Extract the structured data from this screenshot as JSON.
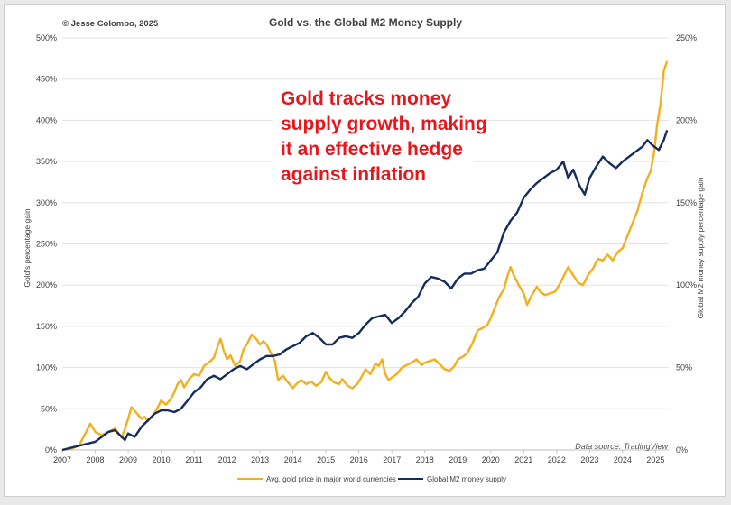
{
  "header": {
    "copyright": "© Jesse Colombo, 2025",
    "title": "Gold vs. the Global M2 Money Supply"
  },
  "annotation": [
    "Gold tracks money",
    "supply growth, making",
    "it an effective hedge",
    "against inflation"
  ],
  "source": "Data source: TradingView",
  "chart_data": {
    "type": "line",
    "title": "Gold vs. the Global M2 Money Supply",
    "ylabel_left": "Gold's percentage gain",
    "ylabel_right": "Global M2 money supply percentage gain",
    "y_left_ticks": [
      "0%",
      "50%",
      "100%",
      "150%",
      "200%",
      "250%",
      "300%",
      "350%",
      "400%",
      "450%",
      "500%"
    ],
    "y_right_ticks": [
      "0%",
      "50%",
      "100%",
      "150%",
      "200%",
      "250%"
    ],
    "ylim_left": [
      0,
      500
    ],
    "ylim_right": [
      0,
      250
    ],
    "xlim": [
      2007,
      2025.4
    ],
    "x_ticks": [
      "2007",
      "2008",
      "2009",
      "2010",
      "2011",
      "2012",
      "2013",
      "2014",
      "2015",
      "2016",
      "2017",
      "2018",
      "2019",
      "2020",
      "2021",
      "2022",
      "2023",
      "2024",
      "2025"
    ],
    "grid": "horizontal",
    "legend_position": "bottom",
    "series": [
      {
        "name": "Avg. gold price in major world currencies",
        "axis": "left",
        "color": "#f5ae1c",
        "points": [
          [
            2007.0,
            0
          ],
          [
            2007.3,
            2
          ],
          [
            2007.5,
            5
          ],
          [
            2007.7,
            20
          ],
          [
            2007.85,
            32
          ],
          [
            2008.0,
            22
          ],
          [
            2008.2,
            18
          ],
          [
            2008.4,
            22
          ],
          [
            2008.6,
            26
          ],
          [
            2008.8,
            15
          ],
          [
            2008.9,
            25
          ],
          [
            2009.0,
            38
          ],
          [
            2009.1,
            52
          ],
          [
            2009.25,
            45
          ],
          [
            2009.4,
            38
          ],
          [
            2009.5,
            40
          ],
          [
            2009.6,
            35
          ],
          [
            2009.8,
            45
          ],
          [
            2009.9,
            52
          ],
          [
            2010.0,
            60
          ],
          [
            2010.15,
            55
          ],
          [
            2010.3,
            62
          ],
          [
            2010.4,
            70
          ],
          [
            2010.5,
            80
          ],
          [
            2010.6,
            85
          ],
          [
            2010.7,
            76
          ],
          [
            2010.85,
            86
          ],
          [
            2011.0,
            92
          ],
          [
            2011.15,
            90
          ],
          [
            2011.3,
            102
          ],
          [
            2011.5,
            108
          ],
          [
            2011.6,
            112
          ],
          [
            2011.7,
            124
          ],
          [
            2011.8,
            135
          ],
          [
            2011.9,
            120
          ],
          [
            2012.0,
            110
          ],
          [
            2012.1,
            115
          ],
          [
            2012.25,
            102
          ],
          [
            2012.4,
            108
          ],
          [
            2012.5,
            122
          ],
          [
            2012.6,
            128
          ],
          [
            2012.75,
            140
          ],
          [
            2012.9,
            134
          ],
          [
            2013.0,
            128
          ],
          [
            2013.1,
            132
          ],
          [
            2013.2,
            128
          ],
          [
            2013.3,
            120
          ],
          [
            2013.45,
            108
          ],
          [
            2013.55,
            85
          ],
          [
            2013.7,
            90
          ],
          [
            2013.85,
            82
          ],
          [
            2014.0,
            75
          ],
          [
            2014.1,
            80
          ],
          [
            2014.25,
            85
          ],
          [
            2014.4,
            80
          ],
          [
            2014.55,
            83
          ],
          [
            2014.7,
            78
          ],
          [
            2014.85,
            82
          ],
          [
            2015.0,
            95
          ],
          [
            2015.1,
            88
          ],
          [
            2015.25,
            82
          ],
          [
            2015.4,
            80
          ],
          [
            2015.5,
            86
          ],
          [
            2015.65,
            78
          ],
          [
            2015.8,
            75
          ],
          [
            2015.95,
            80
          ],
          [
            2016.1,
            90
          ],
          [
            2016.2,
            98
          ],
          [
            2016.35,
            92
          ],
          [
            2016.5,
            105
          ],
          [
            2016.6,
            102
          ],
          [
            2016.7,
            110
          ],
          [
            2016.8,
            92
          ],
          [
            2016.9,
            85
          ],
          [
            2017.0,
            88
          ],
          [
            2017.15,
            92
          ],
          [
            2017.3,
            100
          ],
          [
            2017.45,
            103
          ],
          [
            2017.6,
            106
          ],
          [
            2017.75,
            110
          ],
          [
            2017.9,
            103
          ],
          [
            2018.0,
            106
          ],
          [
            2018.15,
            108
          ],
          [
            2018.3,
            110
          ],
          [
            2018.45,
            104
          ],
          [
            2018.6,
            98
          ],
          [
            2018.75,
            96
          ],
          [
            2018.9,
            102
          ],
          [
            2019.0,
            110
          ],
          [
            2019.15,
            113
          ],
          [
            2019.3,
            118
          ],
          [
            2019.45,
            130
          ],
          [
            2019.6,
            145
          ],
          [
            2019.75,
            148
          ],
          [
            2019.9,
            152
          ],
          [
            2020.0,
            160
          ],
          [
            2020.1,
            170
          ],
          [
            2020.25,
            185
          ],
          [
            2020.4,
            195
          ],
          [
            2020.5,
            210
          ],
          [
            2020.6,
            222
          ],
          [
            2020.7,
            212
          ],
          [
            2020.85,
            200
          ],
          [
            2021.0,
            190
          ],
          [
            2021.1,
            176
          ],
          [
            2021.25,
            188
          ],
          [
            2021.4,
            198
          ],
          [
            2021.5,
            192
          ],
          [
            2021.65,
            188
          ],
          [
            2021.8,
            190
          ],
          [
            2021.95,
            192
          ],
          [
            2022.1,
            202
          ],
          [
            2022.2,
            210
          ],
          [
            2022.35,
            222
          ],
          [
            2022.5,
            212
          ],
          [
            2022.65,
            203
          ],
          [
            2022.8,
            200
          ],
          [
            2022.95,
            212
          ],
          [
            2023.1,
            220
          ],
          [
            2023.25,
            232
          ],
          [
            2023.4,
            230
          ],
          [
            2023.55,
            237
          ],
          [
            2023.7,
            230
          ],
          [
            2023.85,
            240
          ],
          [
            2024.0,
            245
          ],
          [
            2024.15,
            260
          ],
          [
            2024.3,
            275
          ],
          [
            2024.45,
            290
          ],
          [
            2024.6,
            312
          ],
          [
            2024.75,
            330
          ],
          [
            2024.85,
            338
          ],
          [
            2024.95,
            360
          ],
          [
            2025.05,
            395
          ],
          [
            2025.15,
            420
          ],
          [
            2025.25,
            460
          ],
          [
            2025.35,
            472
          ]
        ]
      },
      {
        "name": "Global M2 money supply",
        "axis": "right",
        "color": "#172b5c",
        "points": [
          [
            2007.0,
            0
          ],
          [
            2007.2,
            1
          ],
          [
            2007.4,
            2
          ],
          [
            2007.6,
            3
          ],
          [
            2007.8,
            4
          ],
          [
            2008.0,
            5
          ],
          [
            2008.2,
            8
          ],
          [
            2008.4,
            11
          ],
          [
            2008.6,
            12
          ],
          [
            2008.75,
            9
          ],
          [
            2008.9,
            6
          ],
          [
            2009.0,
            10
          ],
          [
            2009.2,
            8
          ],
          [
            2009.4,
            14
          ],
          [
            2009.6,
            18
          ],
          [
            2009.8,
            22
          ],
          [
            2010.0,
            24
          ],
          [
            2010.2,
            24
          ],
          [
            2010.4,
            23
          ],
          [
            2010.6,
            25
          ],
          [
            2010.8,
            30
          ],
          [
            2011.0,
            35
          ],
          [
            2011.2,
            38
          ],
          [
            2011.4,
            43
          ],
          [
            2011.6,
            45
          ],
          [
            2011.8,
            43
          ],
          [
            2012.0,
            46
          ],
          [
            2012.2,
            49
          ],
          [
            2012.4,
            51
          ],
          [
            2012.6,
            49
          ],
          [
            2012.8,
            52
          ],
          [
            2013.0,
            55
          ],
          [
            2013.2,
            57
          ],
          [
            2013.4,
            57
          ],
          [
            2013.6,
            58
          ],
          [
            2013.8,
            61
          ],
          [
            2014.0,
            63
          ],
          [
            2014.2,
            65
          ],
          [
            2014.4,
            69
          ],
          [
            2014.6,
            71
          ],
          [
            2014.8,
            68
          ],
          [
            2015.0,
            64
          ],
          [
            2015.2,
            64
          ],
          [
            2015.4,
            68
          ],
          [
            2015.6,
            69
          ],
          [
            2015.8,
            68
          ],
          [
            2016.0,
            71
          ],
          [
            2016.2,
            76
          ],
          [
            2016.4,
            80
          ],
          [
            2016.6,
            81
          ],
          [
            2016.8,
            82
          ],
          [
            2017.0,
            77
          ],
          [
            2017.2,
            80
          ],
          [
            2017.4,
            84
          ],
          [
            2017.6,
            89
          ],
          [
            2017.8,
            93
          ],
          [
            2018.0,
            101
          ],
          [
            2018.2,
            105
          ],
          [
            2018.4,
            104
          ],
          [
            2018.6,
            102
          ],
          [
            2018.8,
            98
          ],
          [
            2019.0,
            104
          ],
          [
            2019.2,
            107
          ],
          [
            2019.4,
            107
          ],
          [
            2019.6,
            109
          ],
          [
            2019.8,
            110
          ],
          [
            2020.0,
            115
          ],
          [
            2020.2,
            120
          ],
          [
            2020.4,
            132
          ],
          [
            2020.6,
            139
          ],
          [
            2020.8,
            144
          ],
          [
            2021.0,
            153
          ],
          [
            2021.2,
            158
          ],
          [
            2021.4,
            162
          ],
          [
            2021.6,
            165
          ],
          [
            2021.8,
            168
          ],
          [
            2022.0,
            170
          ],
          [
            2022.2,
            175
          ],
          [
            2022.35,
            165
          ],
          [
            2022.5,
            170
          ],
          [
            2022.7,
            160
          ],
          [
            2022.85,
            155
          ],
          [
            2023.0,
            165
          ],
          [
            2023.2,
            172
          ],
          [
            2023.4,
            178
          ],
          [
            2023.6,
            174
          ],
          [
            2023.8,
            171
          ],
          [
            2024.0,
            175
          ],
          [
            2024.2,
            178
          ],
          [
            2024.4,
            181
          ],
          [
            2024.6,
            184
          ],
          [
            2024.75,
            188
          ],
          [
            2024.9,
            185
          ],
          [
            2025.1,
            182
          ],
          [
            2025.25,
            188
          ],
          [
            2025.35,
            194
          ]
        ]
      }
    ]
  }
}
